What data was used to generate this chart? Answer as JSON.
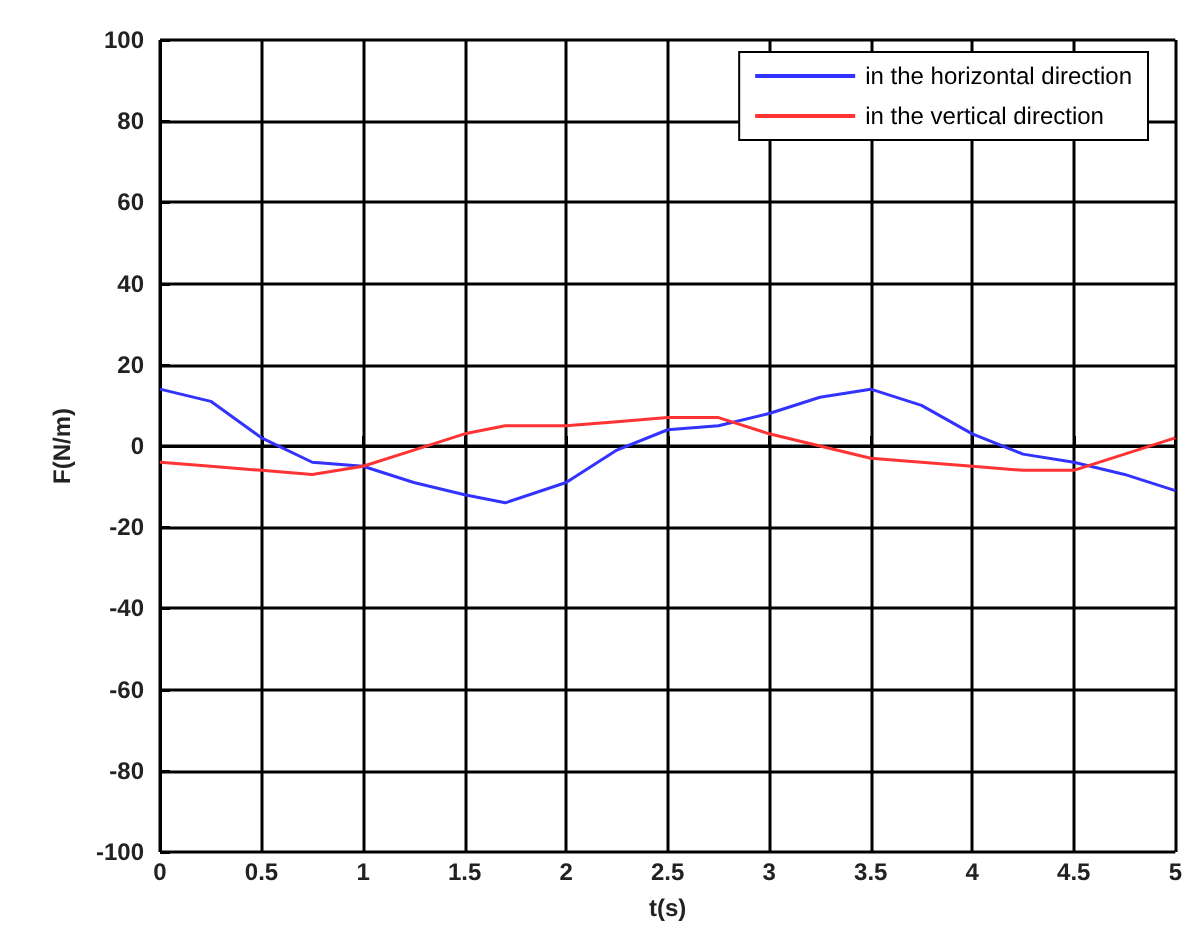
{
  "chart_data": {
    "type": "line",
    "xlabel": "t(s)",
    "ylabel": "F(N/m)",
    "x": [
      0,
      0.25,
      0.5,
      0.75,
      1,
      1.25,
      1.5,
      1.7,
      2,
      2.25,
      2.5,
      2.75,
      3,
      3.25,
      3.5,
      3.75,
      4,
      4.25,
      4.5,
      4.75,
      5
    ],
    "series": [
      {
        "name": "in the horizontal direction",
        "color": "#3333ff",
        "values": [
          14,
          11,
          2,
          -4,
          -5,
          -9,
          -12,
          -14,
          -9,
          -1,
          4,
          5,
          8,
          12,
          14,
          10,
          3,
          -2,
          -4,
          -7,
          -11
        ]
      },
      {
        "name": "in the vertical direction",
        "color": "#ff3333",
        "values": [
          -4,
          -5,
          -6,
          -7,
          -5,
          -1,
          3,
          5,
          5,
          6,
          7,
          7,
          3,
          0,
          -3,
          -4,
          -5,
          -6,
          -6,
          -2,
          2
        ]
      }
    ],
    "xlim": [
      0,
      5
    ],
    "xticks": [
      0,
      0.5,
      1,
      1.5,
      2,
      2.5,
      3,
      3.5,
      4,
      4.5,
      5
    ],
    "ylim": [
      -100,
      100
    ],
    "yticks": [
      -100,
      -80,
      -60,
      -40,
      -20,
      0,
      20,
      40,
      60,
      80,
      100
    ],
    "grid": true,
    "legend": "top right",
    "marker": "none",
    "line_style": "solid"
  }
}
